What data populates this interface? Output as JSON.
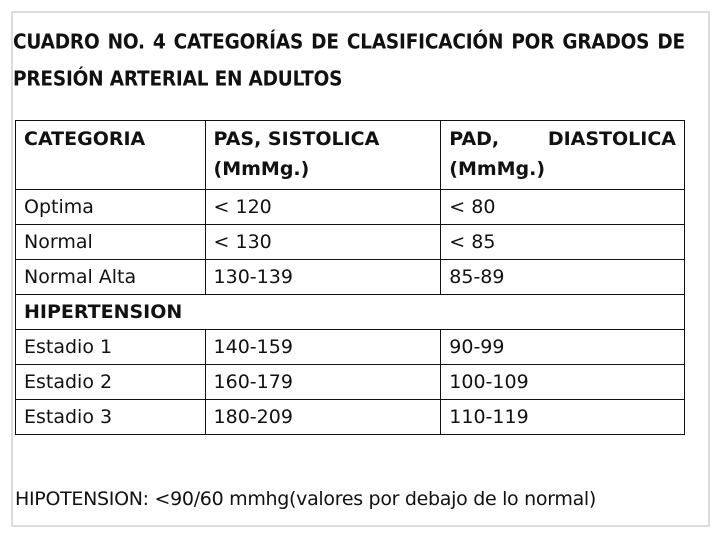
{
  "title": {
    "line1": "CUADRO NO. 4 CATEGORÍAS DE CLASIFICACIÓN POR GRADOS DE",
    "line2": "PRESIÓN ARTERIAL EN ADULTOS"
  },
  "table": {
    "headers": {
      "category": "CATEGORIA",
      "pas_a": "PAS, SISTOLICA",
      "pas_b": "(MmMg.)",
      "pad_a_left": "PAD,",
      "pad_a_right": "DIASTOLICA",
      "pad_b": "(MmMg.)"
    },
    "rows": [
      {
        "category": "Optima",
        "pas": "< 120",
        "pad": "< 80"
      },
      {
        "category": "Normal",
        "pas": "< 130",
        "pad": "< 85"
      },
      {
        "category": "Normal Alta",
        "pas": "130-139",
        "pad": "85-89"
      }
    ],
    "section_label": "HIPERTENSION",
    "hypertension_rows": [
      {
        "category": "Estadio 1",
        "pas": "140-159",
        "pad": "90-99"
      },
      {
        "category": "Estadio 2",
        "pas": "160-179",
        "pad": "100-109"
      },
      {
        "category": "Estadio 3",
        "pas": "180-209",
        "pad": "110-119"
      }
    ]
  },
  "footer": "HIPOTENSION: <90/60 mmhg(valores por debajo de lo normal)"
}
